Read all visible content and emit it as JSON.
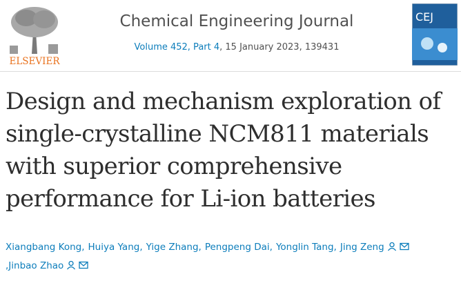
{
  "header": {
    "publisher": "ELSEVIER",
    "journal": "Chemical Engineering Journal",
    "volume_link": "Volume 452, Part 4",
    "issue_details": ", 15 January 2023, 139431",
    "cover_title": "CEJ"
  },
  "article": {
    "title_lines": [
      "Design and mechanism exploration of",
      "single-crystalline NCM811 materials",
      "with superior comprehensive",
      "performance for Li-ion batteries"
    ],
    "author_separator": ",",
    "authors": [
      "Xiangbang Kong",
      "Huiya Yang",
      "Yige Zhang",
      "Pengpeng Dai",
      "Yonglin Tang",
      "Jing Zeng",
      "Jinbao Zhao"
    ]
  }
}
